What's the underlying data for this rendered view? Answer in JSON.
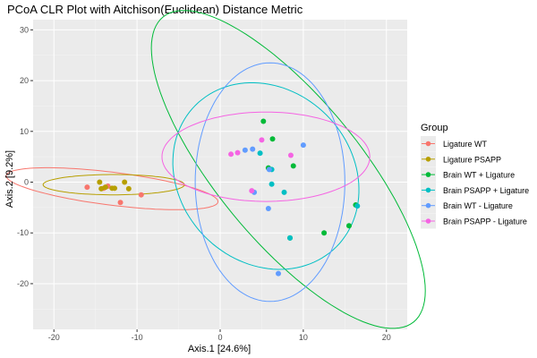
{
  "chart_data": {
    "type": "scatter",
    "title": "PCoA CLR Plot with Aitchison(Euclidean) Distance Metric",
    "xlabel": "Axis.1   [24.6%]",
    "ylabel": "Axis.2   [9.2%]",
    "xlim": [
      -22.5,
      22.5
    ],
    "ylim": [
      -29,
      32
    ],
    "xticks": [
      -20,
      -10,
      0,
      10,
      20
    ],
    "yticks": [
      -20,
      -10,
      0,
      10,
      20,
      30
    ],
    "grid": true,
    "legend": {
      "title": "Group",
      "position": "right"
    },
    "series": [
      {
        "name": "Ligature WT",
        "color": "#F8766D",
        "points": [
          [
            -16,
            -1
          ],
          [
            -14,
            -1.2
          ],
          [
            -13.5,
            -0.8
          ],
          [
            -12,
            -4
          ],
          [
            -9.5,
            -2.5
          ]
        ],
        "ellipse": {
          "cx": -13,
          "cy": -1.3,
          "rx": 13,
          "ry": 3.2,
          "angle_deg": -12
        }
      },
      {
        "name": "Ligature PSAPP",
        "color": "#B79F00",
        "points": [
          [
            -14.5,
            0
          ],
          [
            -14.3,
            -1.3
          ],
          [
            -13.8,
            -1
          ],
          [
            -13,
            -1.2
          ],
          [
            -12.7,
            -1.2
          ],
          [
            -11.5,
            0
          ],
          [
            -11,
            -1.3
          ]
        ],
        "ellipse": {
          "cx": -12.8,
          "cy": -0.5,
          "rx": 8.5,
          "ry": 2,
          "angle_deg": 0
        }
      },
      {
        "name": "Brain WT + Ligature",
        "color": "#00BA38",
        "points": [
          [
            5.2,
            12
          ],
          [
            6.3,
            8.5
          ],
          [
            5.8,
            2.8
          ],
          [
            8.8,
            3.2
          ],
          [
            16.3,
            -4.5
          ],
          [
            12.5,
            -10
          ],
          [
            8.4,
            -11
          ],
          [
            15.5,
            -8.6
          ]
        ],
        "ellipse": {
          "cx": 8.2,
          "cy": 2.5,
          "rx": 34,
          "ry": 9.8,
          "angle_deg": -66
        }
      },
      {
        "name": "Brain PSAPP + Ligature",
        "color": "#00BFC4",
        "points": [
          [
            4.8,
            5.7
          ],
          [
            6.2,
            2.5
          ],
          [
            6.2,
            -0.4
          ],
          [
            7.7,
            -2
          ],
          [
            16.5,
            -4.7
          ],
          [
            8.4,
            -11
          ]
        ],
        "ellipse": {
          "cx": 5.5,
          "cy": 1.2,
          "rx": 11,
          "ry": 18.5,
          "angle_deg": 8
        }
      },
      {
        "name": "Brain WT - Ligature",
        "color": "#619CFF",
        "points": [
          [
            3,
            6.3
          ],
          [
            3.9,
            6.5
          ],
          [
            10,
            7.3
          ],
          [
            5.9,
            2.5
          ],
          [
            4.1,
            -2
          ],
          [
            5.8,
            -5.2
          ],
          [
            7,
            -18
          ]
        ],
        "ellipse": {
          "cx": 6,
          "cy": 0,
          "rx": 9,
          "ry": 23.5,
          "angle_deg": 0
        }
      },
      {
        "name": "Brain PSAPP - Ligature",
        "color": "#F564E3",
        "points": [
          [
            1.3,
            5.5
          ],
          [
            2.1,
            5.8
          ],
          [
            5,
            8.3
          ],
          [
            8.5,
            5.3
          ],
          [
            3.8,
            -1.7
          ]
        ],
        "ellipse": {
          "cx": 5.5,
          "cy": 5,
          "rx": 12.5,
          "ry": 8.8,
          "angle_deg": 0
        }
      }
    ]
  }
}
